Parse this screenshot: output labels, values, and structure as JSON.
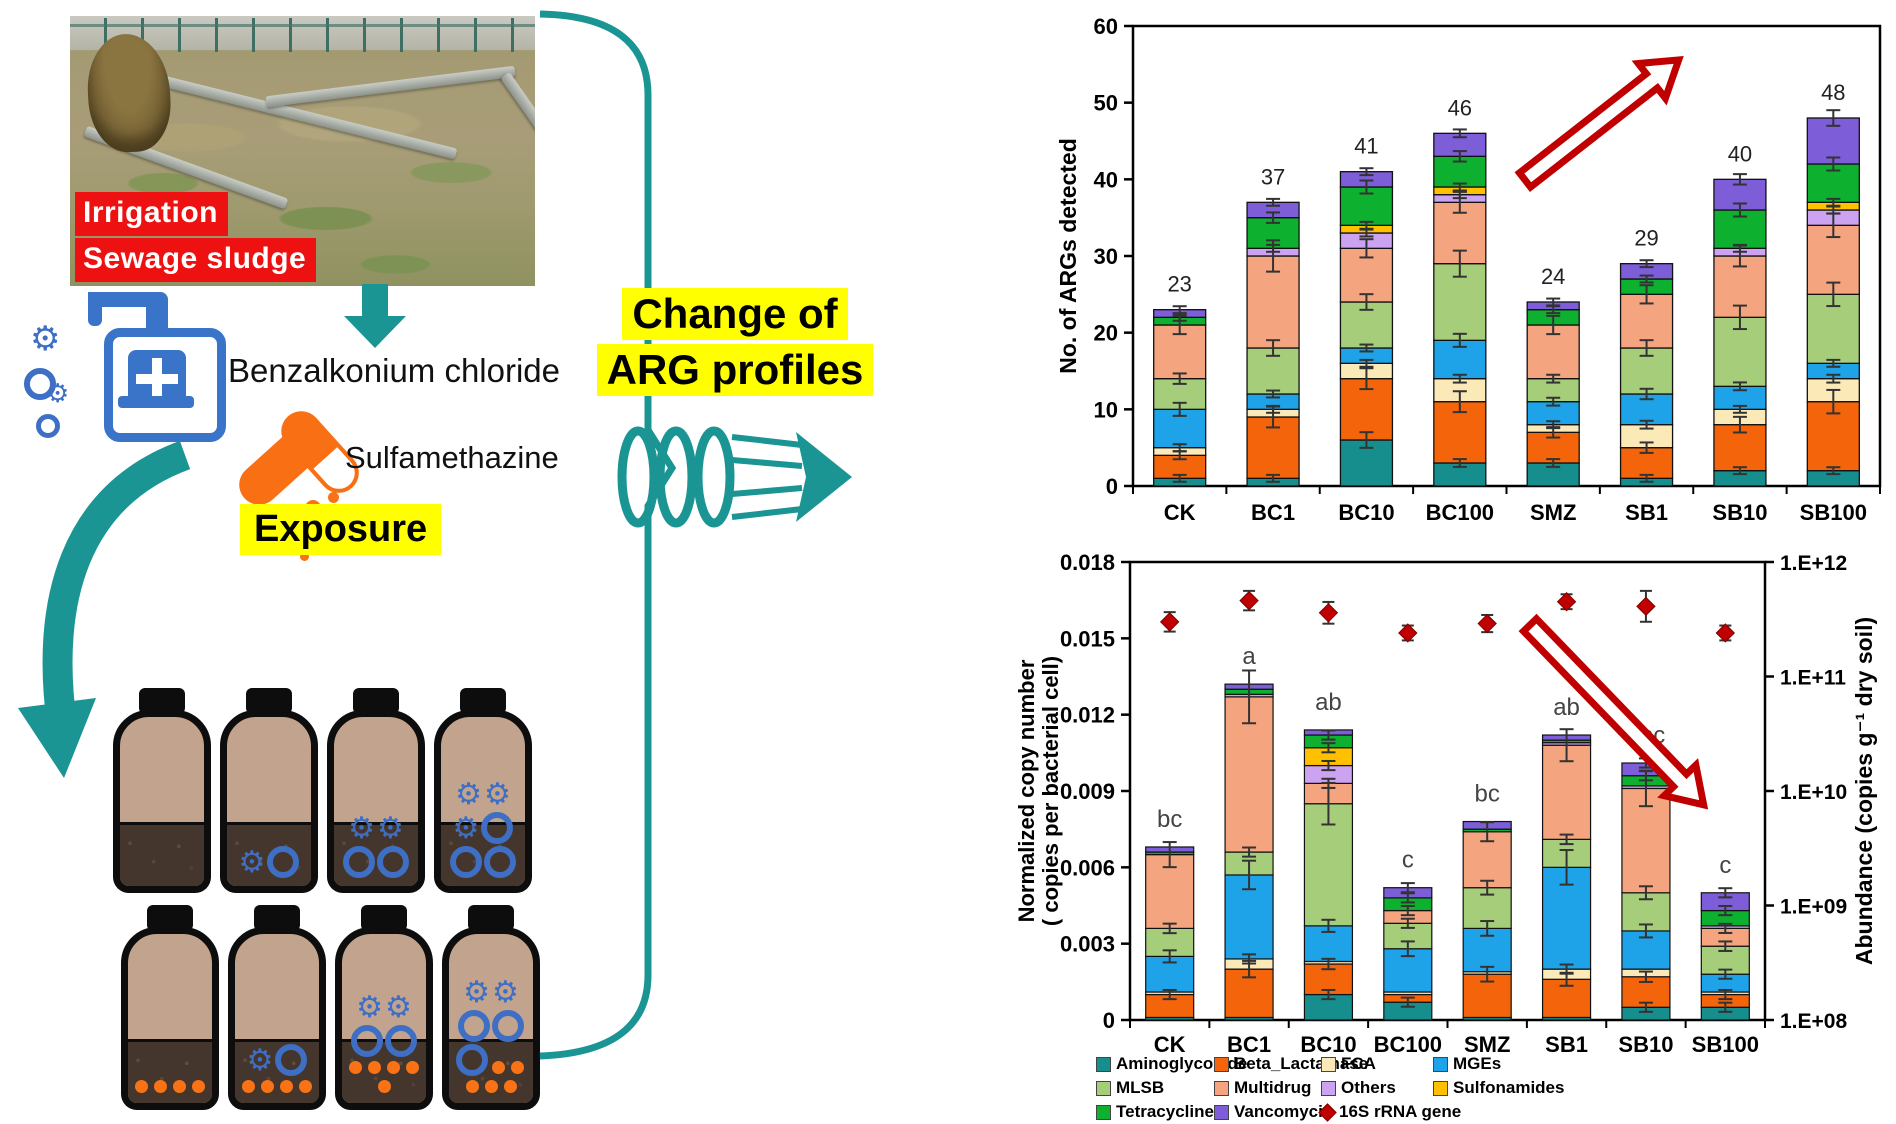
{
  "colors": {
    "teal_accent": "#1b9494",
    "label_red_bg": "#ee1111",
    "highlight_yellow": "#ffff00",
    "trend_arrow_red": "#c00000",
    "dispenser_blue": "#3a74c9",
    "capsule_orange": "#f97014",
    "bottle_tan": "#c2a38d",
    "soil_brown": "#44362c"
  },
  "photo": {
    "label1": "Irrigation",
    "label2": "Sewage sludge"
  },
  "left_panel": {
    "benzalkonium_label": "Benzalkonium chloride",
    "sulfamethazine_label": "Sulfamethazine",
    "exposure_label": "Exposure"
  },
  "middle": {
    "headline_line1": "Change of",
    "headline_line2": "ARG profiles"
  },
  "bottles": {
    "rows": [
      [
        {
          "gears": 0,
          "rings": 0,
          "dots": 0
        },
        {
          "gears": 1,
          "rings": 1,
          "dots": 0
        },
        {
          "gears": 2,
          "rings": 2,
          "dots": 0
        },
        {
          "gears": 3,
          "rings": 3,
          "dots": 0
        }
      ],
      [
        {
          "gears": 0,
          "rings": 0,
          "dots": 4
        },
        {
          "gears": 1,
          "rings": 1,
          "dots": 4
        },
        {
          "gears": 2,
          "rings": 2,
          "dots": 5
        },
        {
          "gears": 2,
          "rings": 3,
          "dots": 5
        }
      ]
    ]
  },
  "chart_data": [
    {
      "type": "bar",
      "stacked": true,
      "ylabel": "No. of ARGs detected",
      "ylim": [
        0,
        60
      ],
      "yticks": [
        0,
        10,
        20,
        30,
        40,
        50,
        60
      ],
      "grid": false,
      "legend_position": "shared-bottom",
      "categories": [
        "CK",
        "BC1",
        "BC10",
        "BC100",
        "SMZ",
        "SB1",
        "SB10",
        "SB100"
      ],
      "totals": [
        23,
        37,
        41,
        46,
        24,
        29,
        40,
        48
      ],
      "series": [
        {
          "name": "Aminoglycoside",
          "color": "#168e8e",
          "values": [
            1,
            1,
            6,
            3,
            3,
            1,
            2,
            2
          ]
        },
        {
          "name": "Beta_Lactamase",
          "color": "#f4640a",
          "values": [
            3,
            8,
            8,
            8,
            4,
            4,
            6,
            9
          ]
        },
        {
          "name": "FCA",
          "color": "#fce9b8",
          "values": [
            1,
            1,
            2,
            3,
            1,
            3,
            2,
            3
          ]
        },
        {
          "name": "MGEs",
          "color": "#1fa3e8",
          "values": [
            5,
            2,
            2,
            5,
            3,
            4,
            3,
            2
          ]
        },
        {
          "name": "MLSB",
          "color": "#a6ce7a",
          "values": [
            4,
            6,
            6,
            10,
            3,
            6,
            9,
            9
          ]
        },
        {
          "name": "Multidrug",
          "color": "#f4a47e",
          "values": [
            7,
            12,
            7,
            8,
            7,
            7,
            8,
            9
          ]
        },
        {
          "name": "Others",
          "color": "#cba3f0",
          "values": [
            0,
            1,
            2,
            1,
            0,
            0,
            1,
            2
          ]
        },
        {
          "name": "Sulfonamides",
          "color": "#ffc000",
          "values": [
            0,
            0,
            1,
            1,
            0,
            0,
            0,
            1
          ]
        },
        {
          "name": "Tetracyclines",
          "color": "#0db02f",
          "values": [
            1,
            4,
            5,
            4,
            2,
            2,
            5,
            5
          ]
        },
        {
          "name": "Vancomycin",
          "color": "#7d5dd8",
          "values": [
            1,
            2,
            2,
            3,
            1,
            2,
            4,
            6
          ]
        }
      ],
      "annotation_arrow": "increasing"
    },
    {
      "type": "bar",
      "stacked": true,
      "ylabel_left_line1": "Normalized copy number",
      "ylabel_left_line2": "( copies per bacterial cell)",
      "ylabel_right": "Abundance (copies g⁻¹ dry soil)",
      "ylim_left": [
        0,
        0.018
      ],
      "yticks_left": [
        0,
        0.003,
        0.006,
        0.009,
        0.012,
        0.015,
        0.018
      ],
      "ylim_right_log": [
        100000000.0,
        1000000000000.0
      ],
      "yticks_right_labels": [
        "1.E+12",
        "1.E+11",
        "1.E+10",
        "1.E+09",
        "1.E+08"
      ],
      "grid": false,
      "categories": [
        "CK",
        "BC1",
        "BC10",
        "BC100",
        "SMZ",
        "SB1",
        "SB10",
        "SB100"
      ],
      "sig_letters": [
        "bc",
        "a",
        "ab",
        "c",
        "bc",
        "ab",
        "abc",
        "c"
      ],
      "bar_totals": [
        0.0068,
        0.0132,
        0.0114,
        0.0052,
        0.0078,
        0.0112,
        0.0101,
        0.005
      ],
      "series": [
        {
          "name": "Aminoglycoside",
          "color": "#168e8e",
          "values": [
            0.0001,
            0.0001,
            0.001,
            0.0007,
            0.0001,
            0.0001,
            0.0005,
            0.0005
          ]
        },
        {
          "name": "Beta_Lactamase",
          "color": "#f4640a",
          "values": [
            0.0009,
            0.0019,
            0.0012,
            0.0003,
            0.0017,
            0.0015,
            0.0012,
            0.0005
          ]
        },
        {
          "name": "FCA",
          "color": "#fce9b8",
          "values": [
            0.0001,
            0.0004,
            0.0001,
            0.0001,
            0.0001,
            0.0004,
            0.0003,
            0.0001
          ]
        },
        {
          "name": "MGEs",
          "color": "#1fa3e8",
          "values": [
            0.0014,
            0.0033,
            0.0014,
            0.0017,
            0.0017,
            0.004,
            0.0015,
            0.0007
          ]
        },
        {
          "name": "MLSB",
          "color": "#a6ce7a",
          "values": [
            0.0011,
            0.0009,
            0.0048,
            0.001,
            0.0016,
            0.0011,
            0.0015,
            0.0011
          ]
        },
        {
          "name": "Multidrug",
          "color": "#f4a47e",
          "values": [
            0.0029,
            0.0061,
            0.0008,
            0.0005,
            0.0022,
            0.0037,
            0.0041,
            0.0007
          ]
        },
        {
          "name": "Others",
          "color": "#cba3f0",
          "values": [
            0,
            0.0001,
            0.0007,
            0,
            0,
            0.0001,
            0.0001,
            0.0001
          ]
        },
        {
          "name": "Sulfonamides",
          "color": "#ffc000",
          "values": [
            0,
            0,
            0.0007,
            0,
            0,
            0,
            0,
            0
          ]
        },
        {
          "name": "Tetracyclines",
          "color": "#0db02f",
          "values": [
            0.0001,
            0.0002,
            0.0005,
            0.0005,
            0.0001,
            0.0001,
            0.0004,
            0.0006
          ]
        },
        {
          "name": "Vancomycin",
          "color": "#7d5dd8",
          "values": [
            0.0002,
            0.0002,
            0.0002,
            0.0004,
            0.0003,
            0.0002,
            0.0005,
            0.0007
          ]
        }
      ],
      "scatter_series": {
        "name": "16S rRNA gene",
        "color": "#c00000",
        "axis": "right-log",
        "values": [
          300000000000.0,
          460000000000.0,
          360000000000.0,
          240000000000.0,
          290000000000.0,
          450000000000.0,
          410000000000.0,
          240000000000.0
        ],
        "err_log_decades": [
          0.05,
          0.05,
          0.06,
          0.03,
          0.04,
          0.03,
          0.1,
          0.03
        ]
      },
      "annotation_arrow": "decreasing"
    }
  ],
  "legend_items": [
    "Aminoglycoside",
    "Beta_Lactamase",
    "FCA",
    "MGEs",
    "MLSB",
    "Multidrug",
    "Others",
    "Sulfonamides",
    "Tetracyclines",
    "Vancomycin",
    "16S rRNA gene"
  ]
}
